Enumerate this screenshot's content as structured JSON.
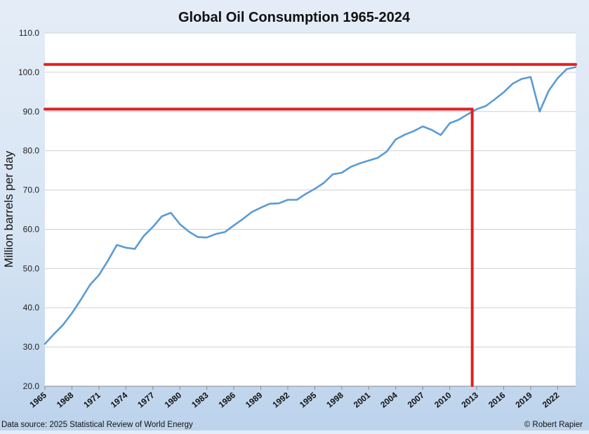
{
  "chart_data": {
    "type": "line",
    "title": "Global Oil Consumption 1965-2024",
    "ylabel": "Million barrels per day",
    "xlabel": "",
    "ylim": [
      20,
      110
    ],
    "xlim": [
      1965,
      2024
    ],
    "grid": true,
    "y_ticks": [
      "20.0",
      "30.0",
      "40.0",
      "50.0",
      "60.0",
      "70.0",
      "80.0",
      "90.0",
      "100.0",
      "110.0"
    ],
    "x_ticks": [
      "1965",
      "1968",
      "1971",
      "1974",
      "1977",
      "1980",
      "1983",
      "1986",
      "1989",
      "1992",
      "1995",
      "1998",
      "2001",
      "2004",
      "2007",
      "2010",
      "2013",
      "2016",
      "2019",
      "2022"
    ],
    "line_color": "#5b9bd5",
    "annotation_color": "#e02020",
    "series": [
      {
        "x": [
          1965,
          1966,
          1967,
          1968,
          1969,
          1970,
          1971,
          1972,
          1973,
          1974,
          1975,
          1976,
          1977,
          1978,
          1979,
          1980,
          1981,
          1982,
          1983,
          1984,
          1985,
          1986,
          1987,
          1988,
          1989,
          1990,
          1991,
          1992,
          1993,
          1994,
          1995,
          1996,
          1997,
          1998,
          1999,
          2000,
          2001,
          2002,
          2003,
          2004,
          2005,
          2006,
          2007,
          2008,
          2009,
          2010,
          2011,
          2012,
          2013,
          2014,
          2015,
          2016,
          2017,
          2018,
          2019,
          2020,
          2021,
          2022,
          2023,
          2024
        ],
        "values": [
          30.8,
          33.3,
          35.6,
          38.6,
          42.1,
          45.8,
          48.3,
          52.0,
          56.0,
          55.3,
          55.0,
          58.3,
          60.6,
          63.3,
          64.2,
          61.3,
          59.4,
          58.0,
          57.9,
          58.8,
          59.3,
          61.0,
          62.6,
          64.4,
          65.5,
          66.5,
          66.6,
          67.5,
          67.5,
          69.0,
          70.3,
          71.8,
          74.0,
          74.4,
          75.9,
          76.8,
          77.5,
          78.2,
          79.8,
          82.9,
          84.1,
          85.0,
          86.2,
          85.3,
          84.0,
          87.0,
          87.9,
          89.3,
          90.6,
          91.4,
          93.1,
          94.9,
          97.1,
          98.3,
          98.8,
          90.0,
          95.3,
          98.5,
          100.8,
          101.3
        ]
      }
    ],
    "reference_lines": [
      {
        "type": "horizontal",
        "y": 102.0,
        "x_from": 1965,
        "x_to": 2024
      },
      {
        "type": "horizontal",
        "y": 90.6,
        "x_from": 1965,
        "x_to": 2012.5
      },
      {
        "type": "vertical",
        "x": 2012.5,
        "y_from": 20,
        "y_to": 90.6
      }
    ]
  },
  "footer": {
    "source": "Data source: 2025 Statistical Review of World Energy",
    "credit": "© Robert Rapier"
  }
}
